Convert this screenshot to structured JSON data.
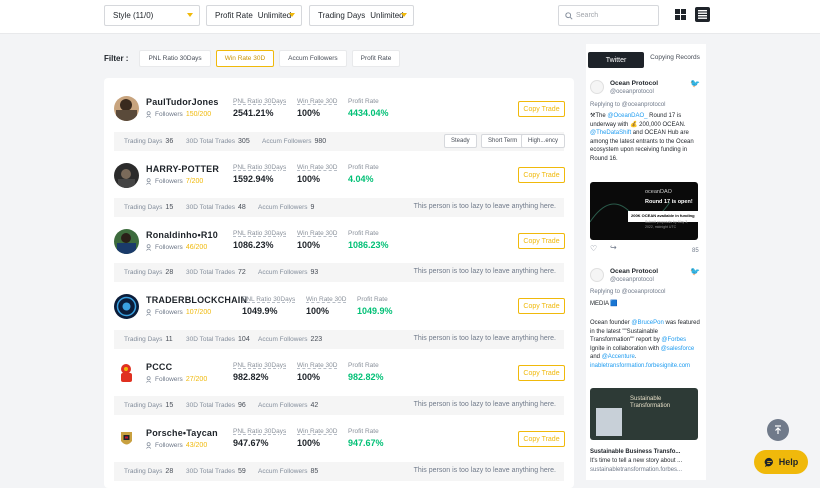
{
  "topbar": {
    "style_dropdown": "Style (11/0)",
    "profit_rate_label": "Profit Rate",
    "profit_rate_value": "Unlimited",
    "trading_days_label": "Trading Days",
    "trading_days_value": "Unlimited",
    "search_placeholder": "Search",
    "grid_icon": "grid-view-icon",
    "list_icon": "list-view-icon"
  },
  "filter": {
    "label": "Filter :",
    "options": [
      "PNL Ratio 30Days",
      "Win Rate 30D",
      "Accum Followers",
      "Profit Rate"
    ],
    "active_index": 1
  },
  "colors": {
    "accent": "#f0b90b",
    "profit": "#02c076",
    "text": "#1e2329",
    "muted": "#848e9c"
  },
  "traders": [
    {
      "name": "PaulTudorJones",
      "followers_label": "Followers",
      "followers": "150/200",
      "pnl_label": "PNL Ratio 30Days",
      "pnl": "2541.21%",
      "win_label": "Win Rate 30D",
      "win": "100%",
      "profit_label": "Profit Rate",
      "profit": "4434.04%",
      "copy": "Copy Trade",
      "td_label": "Trading Days",
      "td": "36",
      "trades_label": "30D Total Trades",
      "trades": "305",
      "accum_label": "Accum Followers",
      "accum": "980",
      "tags": [
        "Steady",
        "Short Term",
        "High...ency"
      ],
      "message": ""
    },
    {
      "name": "HARRY-POTTER",
      "followers_label": "Followers",
      "followers": "7/200",
      "pnl_label": "PNL Ratio 30Days",
      "pnl": "1592.94%",
      "win_label": "Win Rate 30D",
      "win": "100%",
      "profit_label": "Profit Rate",
      "profit": "4.04%",
      "copy": "Copy Trade",
      "td_label": "Trading Days",
      "td": "15",
      "trades_label": "30D Total Trades",
      "trades": "48",
      "accum_label": "Accum Followers",
      "accum": "9",
      "tags": [],
      "message": "This person is too lazy to leave anything here."
    },
    {
      "name": "Ronaldinho•R10",
      "followers_label": "Followers",
      "followers": "46/200",
      "pnl_label": "PNL Ratio 30Days",
      "pnl": "1086.23%",
      "win_label": "Win Rate 30D",
      "win": "100%",
      "profit_label": "Profit Rate",
      "profit": "1086.23%",
      "copy": "Copy Trade",
      "td_label": "Trading Days",
      "td": "28",
      "trades_label": "30D Total Trades",
      "trades": "72",
      "accum_label": "Accum Followers",
      "accum": "93",
      "tags": [],
      "message": "This person is too lazy to leave anything here."
    },
    {
      "name": "TRADERBLOCKCHAIN",
      "followers_label": "Followers",
      "followers": "107/200",
      "pnl_label": "PNL Ratio 30Days",
      "pnl": "1049.9%",
      "win_label": "Win Rate 30D",
      "win": "100%",
      "profit_label": "Profit Rate",
      "profit": "1049.9%",
      "copy": "Copy Trade",
      "td_label": "Trading Days",
      "td": "11",
      "trades_label": "30D Total Trades",
      "trades": "104",
      "accum_label": "Accum Followers",
      "accum": "223",
      "tags": [],
      "message": "This person is too lazy to leave anything here."
    },
    {
      "name": "PCCC",
      "followers_label": "Followers",
      "followers": "27/200",
      "pnl_label": "PNL Ratio 30Days",
      "pnl": "982.82%",
      "win_label": "Win Rate 30D",
      "win": "100%",
      "profit_label": "Profit Rate",
      "profit": "982.82%",
      "copy": "Copy Trade",
      "td_label": "Trading Days",
      "td": "15",
      "trades_label": "30D Total Trades",
      "trades": "96",
      "accum_label": "Accum Followers",
      "accum": "42",
      "tags": [],
      "message": "This person is too lazy to leave anything here."
    },
    {
      "name": "Porsche•Taycan",
      "followers_label": "Followers",
      "followers": "43/200",
      "pnl_label": "PNL Ratio 30Days",
      "pnl": "947.67%",
      "win_label": "Win Rate 30D",
      "win": "100%",
      "profit_label": "Profit Rate",
      "profit": "947.67%",
      "copy": "Copy Trade",
      "td_label": "Trading Days",
      "td": "28",
      "trades_label": "30D Total Trades",
      "trades": "59",
      "accum_label": "Accum Followers",
      "accum": "85",
      "tags": [],
      "message": "This person is too lazy to leave anything here."
    }
  ],
  "sidebar": {
    "tab_twitter": "Twitter",
    "tab_copying": "Copying Records",
    "tweet1": {
      "user": "Ocean Protocol",
      "handle": "@oceanprotocol",
      "reply": "Replying to @oceanprotocol",
      "text_a": "⚒The ",
      "link_a": "@OceanDAO_",
      "text_b": " Round 17 is underway with 💰 200,000 OCEAN. ",
      "link_b": "@TheDataShift",
      "text_c": " and OCEAN Hub are among the latest entrants to the Ocean ecosystem upon receiving funding in Round 16.",
      "img_brand": "oceanDAO",
      "img_title": "Round 17 is open!",
      "img_sub": "200K OCEAN available in funding",
      "img_note": "Submit proposals by May 3, 2022, midnight UTC",
      "likes": "85"
    },
    "tweet2": {
      "user": "Ocean Protocol",
      "handle": "@oceanprotocol",
      "reply": "Replying to @oceanprotocol",
      "media": "MEDIA 🟦",
      "text_a": "Ocean founder ",
      "link_a": "@BrucePon",
      "text_b": " was featured in the latest \"\"Sustainable Transformation\"\" report by ",
      "link_b": "@Forbes",
      "text_c": " Ignite in collaboration with ",
      "link_c": "@salesforce",
      "text_d": " and ",
      "link_d": "@Accenture",
      "text_e": ".",
      "url": "inabletransformation.forbesignite.com",
      "img_title": "Sustainable Transformation",
      "card_title": "Sustainable Business Transfo...",
      "card_desc": "It's time to tell a new story about ...",
      "card_url": "sustainabletransformation.forbes..."
    }
  },
  "help": "Help"
}
